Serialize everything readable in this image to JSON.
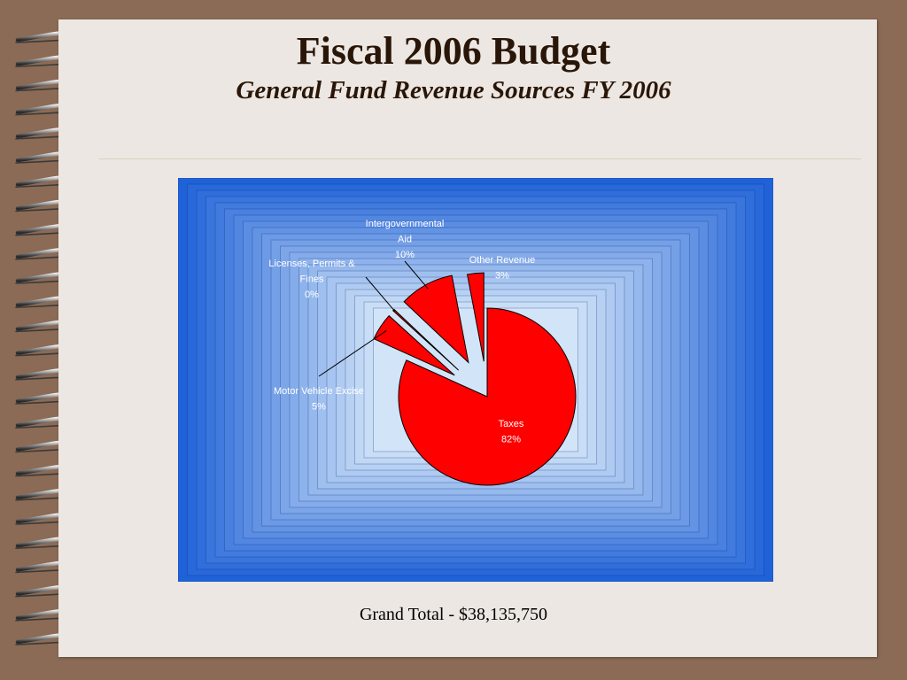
{
  "slide": {
    "title": "Fiscal 2006 Budget",
    "subtitle": "General Fund Revenue Sources FY 2006",
    "footer": "Grand Total - $38,135,750"
  },
  "colors": {
    "slice": "#ff0000",
    "chart_bg_outer": "#1f62d8",
    "chart_bg_inner": "#d2e4f8",
    "page": "#ece7e2",
    "frame": "#8b6b55"
  },
  "chart_data": {
    "type": "pie",
    "exploded": true,
    "legend": "none",
    "slices": [
      {
        "name_lines": [
          "Taxes"
        ],
        "value": 82,
        "pct_label": "82%"
      },
      {
        "name_lines": [
          "Motor Vehicle Excise"
        ],
        "value": 5,
        "pct_label": "5%"
      },
      {
        "name_lines": [
          "Licenses, Permits &",
          "Fines"
        ],
        "value": 0.3,
        "pct_label": "0%"
      },
      {
        "name_lines": [
          "Intergovernmental",
          "Aid"
        ],
        "value": 10,
        "pct_label": "10%"
      },
      {
        "name_lines": [
          "Other Revenue"
        ],
        "value": 3,
        "pct_label": "3%"
      }
    ]
  }
}
